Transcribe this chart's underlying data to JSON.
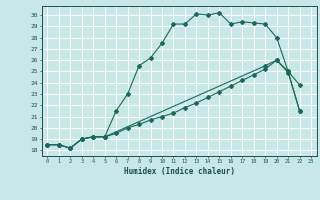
{
  "xlabel": "Humidex (Indice chaleur)",
  "bg_color": "#c8e8e8",
  "grid_color": "#ffffff",
  "line_color": "#1a6a5a",
  "xlim": [
    -0.5,
    23.5
  ],
  "ylim": [
    17.5,
    30.8
  ],
  "xticks": [
    0,
    1,
    2,
    3,
    4,
    5,
    6,
    7,
    8,
    9,
    10,
    11,
    12,
    13,
    14,
    15,
    16,
    17,
    18,
    19,
    20,
    21,
    22,
    23
  ],
  "yticks": [
    18,
    19,
    20,
    21,
    22,
    23,
    24,
    25,
    26,
    27,
    28,
    29,
    30
  ],
  "line1_x": [
    0,
    1,
    2,
    3,
    4,
    5,
    6,
    7,
    8,
    9,
    10,
    11,
    12,
    13,
    14,
    15,
    16,
    17,
    18,
    19,
    20,
    21,
    22
  ],
  "line1_y": [
    18.5,
    18.5,
    18.2,
    19.0,
    19.2,
    19.2,
    21.5,
    23.0,
    25.5,
    26.2,
    27.5,
    29.2,
    29.2,
    30.1,
    30.0,
    30.2,
    29.2,
    29.4,
    29.3,
    29.2,
    28.0,
    25.0,
    23.8
  ],
  "line2_x": [
    0,
    1,
    2,
    3,
    4,
    5,
    6,
    7,
    8,
    9,
    10,
    11,
    12,
    13,
    14,
    15,
    16,
    17,
    18,
    19,
    20,
    21,
    22
  ],
  "line2_y": [
    18.5,
    18.5,
    18.2,
    19.0,
    19.2,
    19.2,
    19.5,
    20.0,
    20.3,
    20.7,
    21.0,
    21.3,
    21.8,
    22.2,
    22.7,
    23.2,
    23.7,
    24.2,
    24.7,
    25.2,
    26.0,
    24.9,
    21.5
  ],
  "line3_x": [
    0,
    1,
    2,
    3,
    4,
    5,
    19,
    20,
    21,
    22
  ],
  "line3_y": [
    18.5,
    18.5,
    18.2,
    19.0,
    19.2,
    19.2,
    25.5,
    26.0,
    25.0,
    21.5
  ]
}
